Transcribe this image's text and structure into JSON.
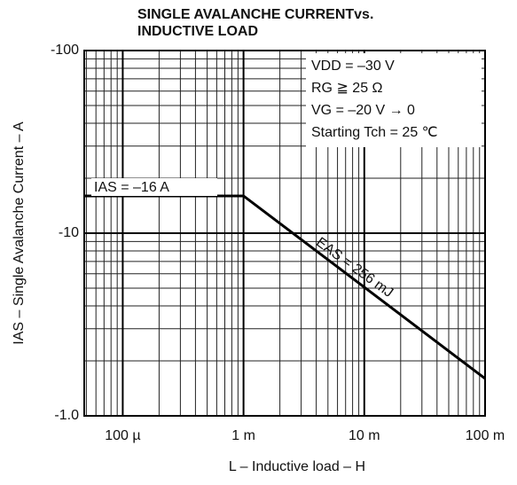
{
  "chart_data": {
    "type": "line",
    "title": [
      "SINGLE AVALANCHE CURRENTvs.",
      "INDUCTIVE LOAD"
    ],
    "x_label": "L – Inductive load – H",
    "y_label": "IAS – Single Avalanche Current – A",
    "x": [
      4.8e-05,
      0.001,
      0.1
    ],
    "values": [
      -16,
      -16,
      -1.6
    ],
    "color": "#000000",
    "xlim": [
      4.8e-05,
      0.1
    ],
    "ylim": [
      -1,
      -100
    ],
    "log_x": true,
    "log_y": true,
    "grid": true,
    "xticks": [
      {
        "value": 0.0001,
        "label": "100 µ"
      },
      {
        "value": 0.001,
        "label": "1 m"
      },
      {
        "value": 0.01,
        "label": "10 m"
      },
      {
        "value": 0.1,
        "label": "100 m"
      }
    ],
    "yticks": [
      -100,
      -10,
      {
        "value": -1,
        "label": "-1.0"
      }
    ],
    "conditions": [
      "VDD = –30 V",
      "RG ≧ 25 Ω",
      "VG = –20 V → 0",
      "Starting Tch = 25 ℃"
    ],
    "annotations": [
      "IAS = –16 A",
      "EAS = 256 mJ"
    ]
  }
}
